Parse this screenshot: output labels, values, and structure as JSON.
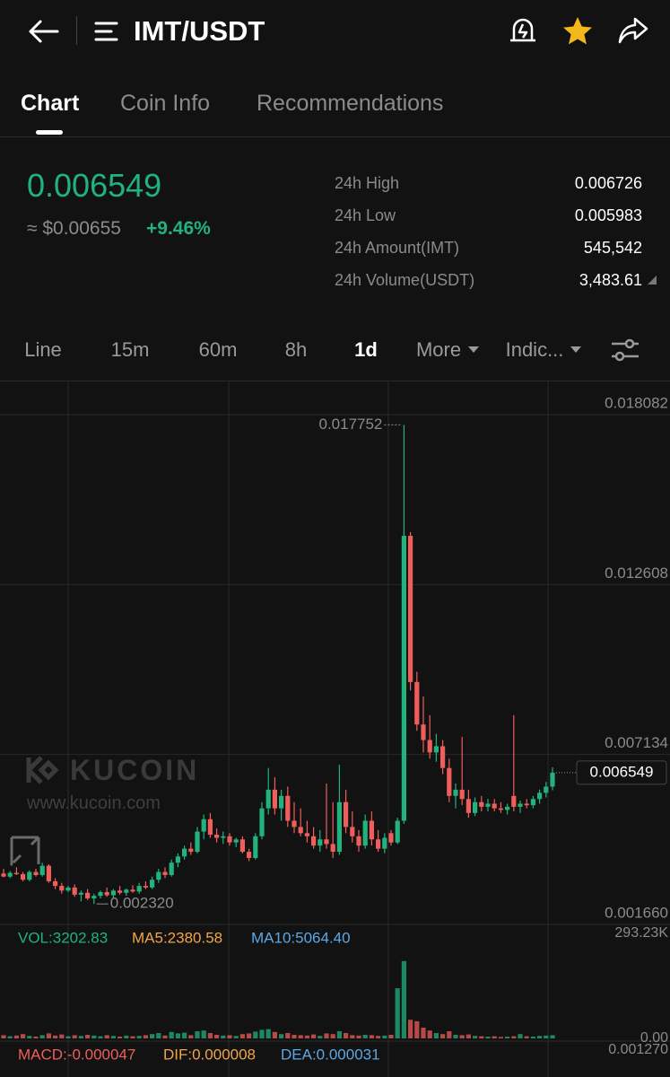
{
  "header": {
    "title": "IMT/USDT"
  },
  "tabs": [
    "Chart",
    "Coin Info",
    "Recommendations"
  ],
  "ticker": {
    "last": "0.006549",
    "fiat": "≈ $0.00655",
    "change": "+9.46%",
    "stats": [
      {
        "label": "24h High",
        "value": "0.006726"
      },
      {
        "label": "24h Low",
        "value": "0.005983"
      },
      {
        "label": "24h Amount(IMT)",
        "value": "545,542"
      },
      {
        "label": "24h Volume(USDT)",
        "value": "3,483.61"
      }
    ]
  },
  "intervals": [
    "Line",
    "15m",
    "60m",
    "8h",
    "1d",
    "More",
    "Indic..."
  ],
  "watermark": {
    "brand": "KUCOIN",
    "url": "www.kucoin.com"
  },
  "chart_data": {
    "type": "candlestick",
    "up_color": "#21b27e",
    "down_color": "#ef5e5a",
    "ylim": [
      0.00166,
      0.019152
    ],
    "yticks": [
      0.018082,
      0.012608,
      0.007134,
      {
        "value": 0.00166,
        "label": "0.001660"
      }
    ],
    "high_marker": 0.017752,
    "low_marker": {
      "value": 0.00232,
      "label": "0.002320"
    },
    "last_price": 0.006549,
    "candles": [
      [
        0.0033,
        0.00345,
        0.00318,
        0.0032
      ],
      [
        0.0032,
        0.00338,
        0.00315,
        0.00332
      ],
      [
        0.00332,
        0.0035,
        0.00325,
        0.00328
      ],
      [
        0.00328,
        0.00335,
        0.00305,
        0.0031
      ],
      [
        0.0031,
        0.0034,
        0.00305,
        0.00335
      ],
      [
        0.00335,
        0.00345,
        0.0032,
        0.00325
      ],
      [
        0.00325,
        0.00365,
        0.0032,
        0.00355
      ],
      [
        0.00355,
        0.0036,
        0.003,
        0.00305
      ],
      [
        0.00305,
        0.00315,
        0.0028,
        0.0029
      ],
      [
        0.0029,
        0.003,
        0.00265,
        0.00275
      ],
      [
        0.00275,
        0.0029,
        0.0027,
        0.00285
      ],
      [
        0.00285,
        0.00295,
        0.00255,
        0.00262
      ],
      [
        0.00262,
        0.00275,
        0.0024,
        0.00268
      ],
      [
        0.00268,
        0.0028,
        0.00245,
        0.0025
      ],
      [
        0.0025,
        0.00265,
        0.00232,
        0.00258
      ],
      [
        0.00258,
        0.00275,
        0.0025,
        0.0027
      ],
      [
        0.0027,
        0.00285,
        0.00255,
        0.0026
      ],
      [
        0.0026,
        0.0028,
        0.0025,
        0.00275
      ],
      [
        0.00275,
        0.0029,
        0.00262,
        0.00268
      ],
      [
        0.00268,
        0.00282,
        0.00258,
        0.00278
      ],
      [
        0.00278,
        0.00292,
        0.00268,
        0.00272
      ],
      [
        0.00272,
        0.003,
        0.00265,
        0.0029
      ],
      [
        0.0029,
        0.00305,
        0.0028,
        0.00285
      ],
      [
        0.00285,
        0.0032,
        0.0028,
        0.0031
      ],
      [
        0.0031,
        0.00345,
        0.003,
        0.00335
      ],
      [
        0.00335,
        0.0035,
        0.00315,
        0.00325
      ],
      [
        0.00325,
        0.00375,
        0.0032,
        0.00365
      ],
      [
        0.00365,
        0.00395,
        0.0035,
        0.00385
      ],
      [
        0.00385,
        0.0042,
        0.00375,
        0.0041
      ],
      [
        0.0041,
        0.0043,
        0.0039,
        0.004
      ],
      [
        0.004,
        0.0048,
        0.00395,
        0.00465
      ],
      [
        0.00465,
        0.0052,
        0.0044,
        0.00505
      ],
      [
        0.00505,
        0.00525,
        0.00445,
        0.00455
      ],
      [
        0.00455,
        0.00475,
        0.0043,
        0.00445
      ],
      [
        0.00445,
        0.00465,
        0.00425,
        0.0045
      ],
      [
        0.0045,
        0.0046,
        0.0042,
        0.0043
      ],
      [
        0.0043,
        0.00445,
        0.00415,
        0.0044
      ],
      [
        0.0044,
        0.0045,
        0.00395,
        0.004
      ],
      [
        0.004,
        0.0041,
        0.0037,
        0.0038
      ],
      [
        0.0038,
        0.0046,
        0.00375,
        0.0045
      ],
      [
        0.0045,
        0.0056,
        0.0044,
        0.0054
      ],
      [
        0.0054,
        0.0067,
        0.0052,
        0.006
      ],
      [
        0.006,
        0.0064,
        0.0052,
        0.0054
      ],
      [
        0.0054,
        0.006,
        0.005,
        0.0058
      ],
      [
        0.0058,
        0.0061,
        0.0048,
        0.005
      ],
      [
        0.005,
        0.0056,
        0.0046,
        0.0048
      ],
      [
        0.0048,
        0.0054,
        0.0045,
        0.0046
      ],
      [
        0.0046,
        0.005,
        0.0043,
        0.0045
      ],
      [
        0.0045,
        0.0048,
        0.0041,
        0.0042
      ],
      [
        0.0042,
        0.0047,
        0.004,
        0.0044
      ],
      [
        0.0044,
        0.0062,
        0.0041,
        0.00425
      ],
      [
        0.00425,
        0.0056,
        0.0038,
        0.004
      ],
      [
        0.004,
        0.0068,
        0.0039,
        0.0056
      ],
      [
        0.0056,
        0.006,
        0.0046,
        0.0048
      ],
      [
        0.0048,
        0.0053,
        0.0043,
        0.0045
      ],
      [
        0.0045,
        0.0047,
        0.004,
        0.0042
      ],
      [
        0.0042,
        0.0052,
        0.0041,
        0.005
      ],
      [
        0.005,
        0.0053,
        0.0042,
        0.0044
      ],
      [
        0.0044,
        0.0047,
        0.004,
        0.0041
      ],
      [
        0.0041,
        0.0046,
        0.00395,
        0.00445
      ],
      [
        0.0046,
        0.0047,
        0.0042,
        0.0043
      ],
      [
        0.0043,
        0.0051,
        0.00425,
        0.005
      ],
      [
        0.005,
        0.017752,
        0.0049,
        0.01418
      ],
      [
        0.01418,
        0.0143,
        0.0092,
        0.00947
      ],
      [
        0.00947,
        0.0098,
        0.0079,
        0.0081
      ],
      [
        0.0081,
        0.009,
        0.0072,
        0.0076
      ],
      [
        0.0076,
        0.0084,
        0.007,
        0.0072
      ],
      [
        0.0072,
        0.0078,
        0.0069,
        0.0074
      ],
      [
        0.0074,
        0.0076,
        0.0065,
        0.0067
      ],
      [
        0.0067,
        0.007,
        0.0056,
        0.0058
      ],
      [
        0.0058,
        0.0062,
        0.0054,
        0.006
      ],
      [
        0.006,
        0.0077,
        0.0055,
        0.0057
      ],
      [
        0.0057,
        0.006,
        0.0051,
        0.00525
      ],
      [
        0.00525,
        0.00575,
        0.00515,
        0.0056
      ],
      [
        0.0056,
        0.0058,
        0.0053,
        0.00545
      ],
      [
        0.00545,
        0.0057,
        0.0053,
        0.00555
      ],
      [
        0.00555,
        0.0057,
        0.0053,
        0.0054
      ],
      [
        0.0054,
        0.0056,
        0.00525,
        0.00535
      ],
      [
        0.00535,
        0.00555,
        0.0052,
        0.00545
      ],
      [
        0.0058,
        0.0084,
        0.0053,
        0.00545
      ],
      [
        0.00545,
        0.00565,
        0.00525,
        0.00555
      ],
      [
        0.00555,
        0.0057,
        0.0054,
        0.0055
      ],
      [
        0.0055,
        0.0058,
        0.0054,
        0.0057
      ],
      [
        0.0057,
        0.006,
        0.00555,
        0.0059
      ],
      [
        0.0059,
        0.00625,
        0.00575,
        0.0061
      ],
      [
        0.0061,
        0.00672,
        0.00598,
        0.006549
      ]
    ],
    "volume": {
      "y2lim": [
        0,
        318300
      ],
      "y2ticks": [
        {
          "value": 293230,
          "label": "293.23K"
        },
        {
          "value": 0,
          "label": "0.00"
        }
      ],
      "values": [
        9000,
        6000,
        8000,
        12000,
        7000,
        5000,
        9000,
        14000,
        8000,
        11000,
        6000,
        9000,
        7000,
        10000,
        8000,
        6000,
        9000,
        7000,
        5000,
        8000,
        6000,
        7000,
        9000,
        12000,
        15000,
        8000,
        18000,
        14000,
        16000,
        9000,
        20000,
        22000,
        15000,
        10000,
        8000,
        9000,
        7000,
        12000,
        14000,
        19000,
        24000,
        26000,
        18000,
        12000,
        15000,
        10000,
        9000,
        8000,
        11000,
        7000,
        14000,
        12000,
        20000,
        15000,
        9000,
        8000,
        10000,
        9000,
        7000,
        8000,
        10000,
        140000,
        216000,
        52000,
        48000,
        30000,
        22000,
        15000,
        12000,
        20000,
        10000,
        9000,
        11000,
        7000,
        6000,
        5000,
        6000,
        4000,
        5000,
        6000,
        12000,
        6000,
        5000,
        7000,
        8000,
        9000
      ]
    },
    "indicators": {
      "vol": "VOL:3202.83",
      "ma5": "MA5:2380.58",
      "ma10": "MA10:5064.40",
      "macd": "MACD:-0.000047",
      "dif": "DIF:0.000008",
      "dea": "DEA:0.000031",
      "macd_axis": "0.001270"
    }
  }
}
